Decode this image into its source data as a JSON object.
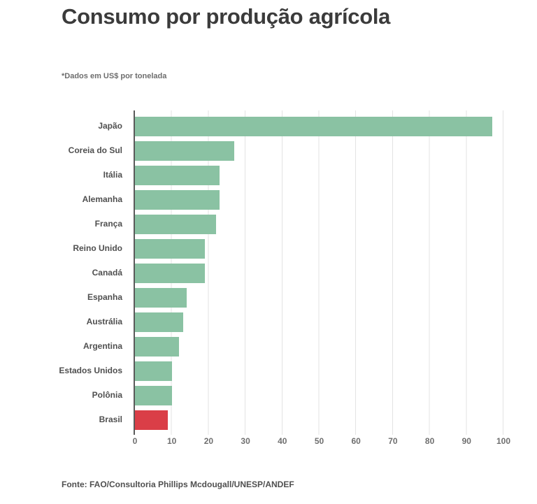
{
  "page": {
    "title": "Consumo por produção agrícola",
    "subtitle": "*Dados em US$ por tonelada",
    "source": "Fonte: FAO/Consultoria Phillips Mcdougall/UNESP/ANDEF"
  },
  "colors": {
    "bar_green": "#8ac2a3",
    "bar_red": "#da3e47",
    "axis_line": "#5a5a5a",
    "gridline": "#e3e3e3",
    "title_text": "#3b3b3b",
    "label_text": "#4f4f4f",
    "tick_text": "#6f6f6f",
    "source_text": "#4f4f4f"
  },
  "chart_data": {
    "type": "bar",
    "orientation": "horizontal",
    "title": "Consumo por produção agrícola",
    "unit_note": "*Dados em US$ por tonelada",
    "source": "Fonte: FAO/Consultoria Phillips Mcdougall/UNESP/ANDEF",
    "categories": [
      "Japão",
      "Coreia do Sul",
      "Itália",
      "Alemanha",
      "França",
      "Reino Unido",
      "Canadá",
      "Espanha",
      "Austrália",
      "Argentina",
      "Estados Unidos",
      "Polônia",
      "Brasil"
    ],
    "values": [
      97,
      27,
      23,
      23,
      22,
      19,
      19,
      14,
      13,
      12,
      10,
      10,
      9
    ],
    "highlight_category": "Brasil",
    "xlabel": "",
    "ylabel": "",
    "xlim": [
      0,
      100
    ],
    "xticks": [
      0,
      10,
      20,
      30,
      40,
      50,
      60,
      70,
      80,
      90,
      100
    ],
    "grid": true,
    "legend": false
  }
}
